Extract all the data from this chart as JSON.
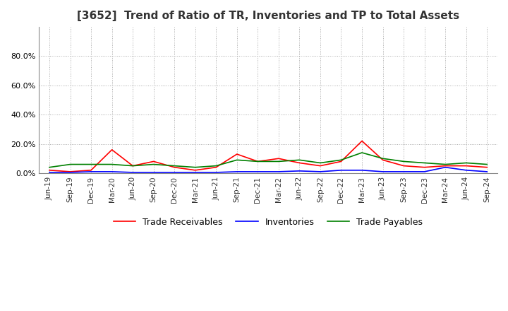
{
  "title": "[3652]  Trend of Ratio of TR, Inventories and TP to Total Assets",
  "x_labels": [
    "Jun-19",
    "Sep-19",
    "Dec-19",
    "Mar-20",
    "Jun-20",
    "Sep-20",
    "Dec-20",
    "Mar-21",
    "Jun-21",
    "Sep-21",
    "Dec-21",
    "Mar-22",
    "Jun-22",
    "Sep-22",
    "Dec-22",
    "Mar-23",
    "Jun-23",
    "Sep-23",
    "Dec-23",
    "Mar-24",
    "Jun-24",
    "Sep-24"
  ],
  "trade_receivables": [
    0.02,
    0.01,
    0.02,
    0.16,
    0.05,
    0.08,
    0.04,
    0.02,
    0.04,
    0.13,
    0.08,
    0.1,
    0.07,
    0.05,
    0.08,
    0.22,
    0.09,
    0.05,
    0.04,
    0.05,
    0.05,
    0.04
  ],
  "inventories": [
    0.005,
    0.005,
    0.01,
    0.01,
    0.005,
    0.005,
    0.005,
    0.005,
    0.005,
    0.01,
    0.01,
    0.01,
    0.015,
    0.01,
    0.02,
    0.02,
    0.01,
    0.01,
    0.01,
    0.04,
    0.02,
    0.01
  ],
  "trade_payables": [
    0.04,
    0.06,
    0.06,
    0.06,
    0.05,
    0.06,
    0.05,
    0.04,
    0.05,
    0.09,
    0.08,
    0.08,
    0.09,
    0.07,
    0.09,
    0.14,
    0.1,
    0.08,
    0.07,
    0.06,
    0.07,
    0.06
  ],
  "tr_color": "#ff0000",
  "inv_color": "#0000ff",
  "tp_color": "#008000",
  "ylim_max": 1.0,
  "yticks": [
    0.0,
    0.2,
    0.4,
    0.6,
    0.8
  ],
  "bg_color": "#ffffff",
  "grid_color": "#aaaaaa"
}
